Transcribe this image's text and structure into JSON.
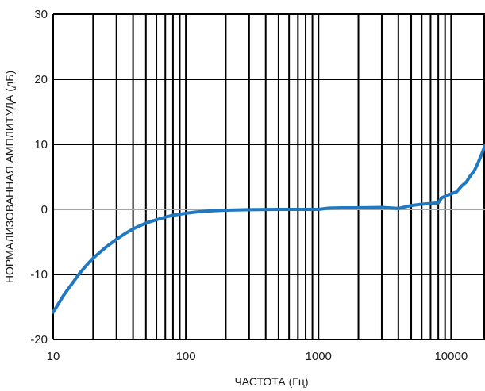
{
  "chart_data": {
    "type": "line",
    "title": "",
    "xlabel": "ЧАСТОТА (Гц)",
    "ylabel": "НОРМАЛИЗОВАННАЯ АМПЛИТУДА (дБ)",
    "x_scale": "log",
    "xlim": [
      10,
      18000
    ],
    "ylim": [
      -20,
      30
    ],
    "x_ticks": [
      10,
      100,
      1000,
      10000
    ],
    "x_tick_labels": [
      "10",
      "100",
      "1000",
      "10000"
    ],
    "y_ticks": [
      -20,
      -10,
      0,
      10,
      20,
      30
    ],
    "y_tick_labels": [
      "-20",
      "-10",
      "0",
      "10",
      "20",
      "30"
    ],
    "grid": true,
    "zero_line_color": "#a6a6a6",
    "grid_color": "#000000",
    "series": [
      {
        "color": "#1f78c1",
        "x": [
          10,
          12,
          14,
          16,
          18,
          20,
          25,
          30,
          35,
          40,
          50,
          60,
          70,
          80,
          100,
          120,
          150,
          200,
          300,
          500,
          700,
          1000,
          1200,
          1500,
          2000,
          3000,
          4000,
          5000,
          6000,
          7000,
          8000,
          8500,
          9000,
          10000,
          11000,
          12000,
          13000,
          14000,
          15000,
          16000,
          17000,
          18000
        ],
        "y": [
          -15.8,
          -13.2,
          -11.3,
          -9.7,
          -8.5,
          -7.5,
          -5.8,
          -4.6,
          -3.7,
          -3.0,
          -2.1,
          -1.6,
          -1.2,
          -0.9,
          -0.6,
          -0.4,
          -0.25,
          -0.12,
          -0.05,
          0.0,
          0.0,
          0.0,
          0.2,
          0.25,
          0.25,
          0.3,
          0.15,
          0.6,
          0.8,
          0.9,
          1.0,
          1.8,
          2.0,
          2.4,
          2.7,
          3.6,
          4.2,
          5.2,
          6.0,
          7.2,
          8.5,
          9.8
        ]
      }
    ]
  }
}
